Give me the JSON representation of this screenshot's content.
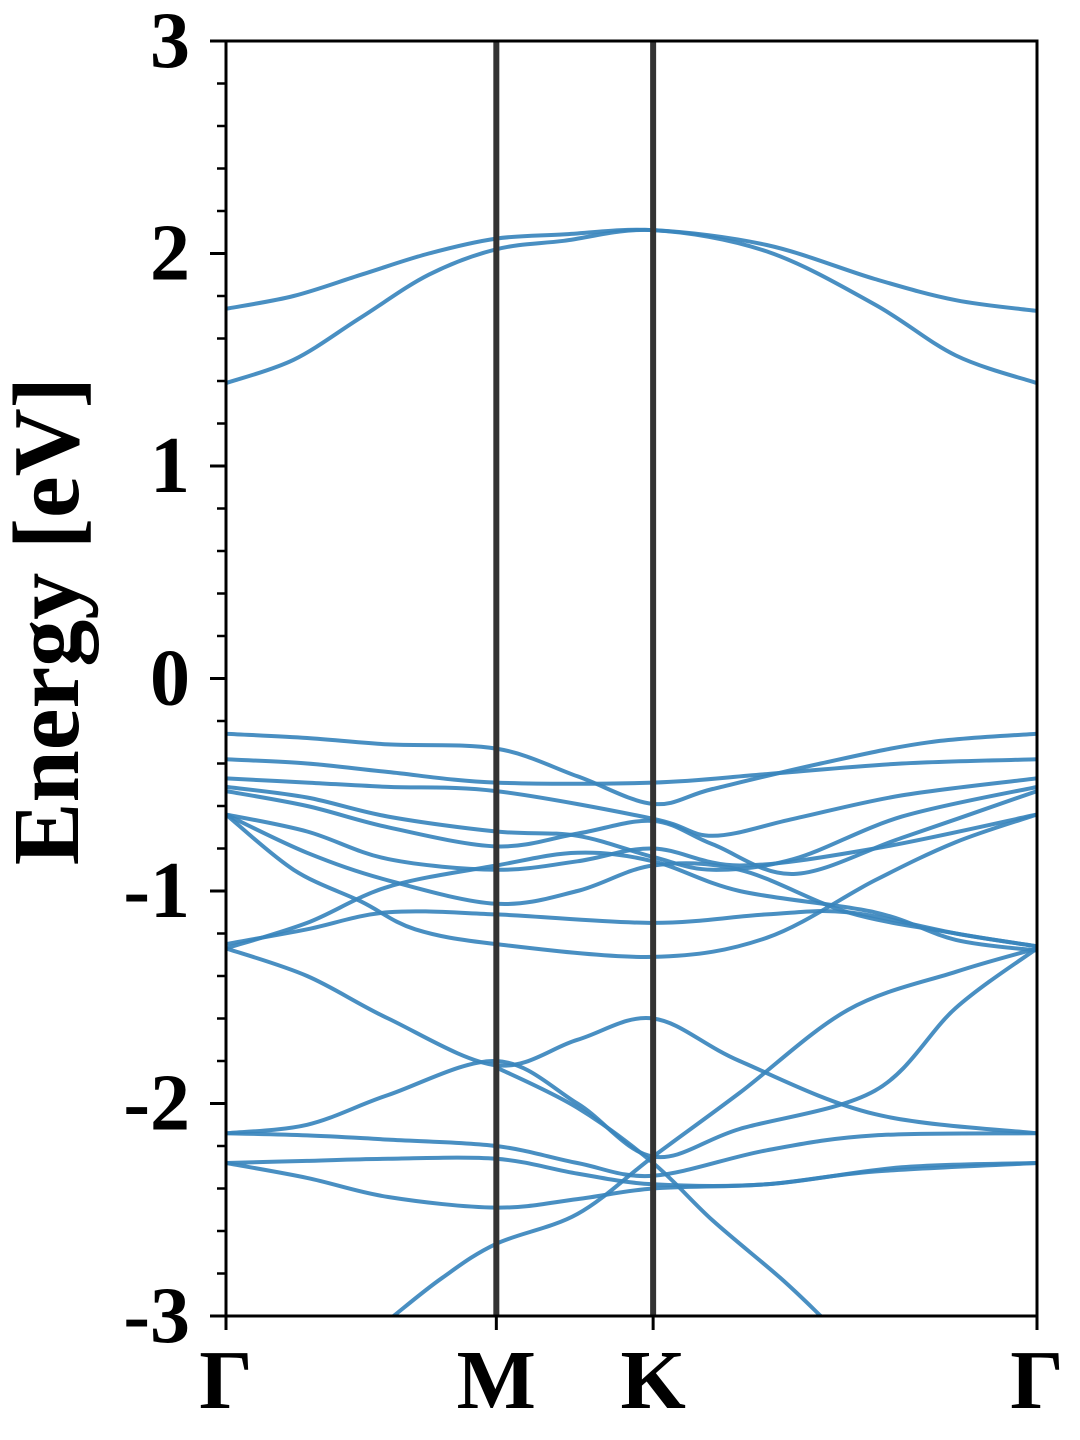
{
  "chart_data": {
    "type": "line",
    "title": "",
    "xlabel": "",
    "ylabel": "Energy [eV]",
    "ylim": [
      -3,
      3
    ],
    "xlim": [
      0,
      3
    ],
    "y_ticks": [
      "-3",
      "-2",
      "-1",
      "0",
      "1",
      "2",
      "3"
    ],
    "y_minor_step": 0.2,
    "high_symmetry_points": [
      {
        "label": "Γ",
        "x": 0
      },
      {
        "label": "M",
        "x": 1
      },
      {
        "label": "K",
        "x": 1.58
      },
      {
        "label": "Γ",
        "x": 3
      }
    ],
    "grid": false,
    "legend": "none",
    "colors": {
      "band": "#3a85bd",
      "vline": "#333333",
      "frame": "#000000"
    },
    "series": [
      {
        "values": [
          [
            0,
            1.74
          ],
          [
            0.25,
            1.8
          ],
          [
            0.5,
            1.9
          ],
          [
            0.75,
            2.0
          ],
          [
            1,
            2.07
          ],
          [
            1.25,
            2.09
          ],
          [
            1.58,
            2.11
          ],
          [
            2,
            2.04
          ],
          [
            2.4,
            1.88
          ],
          [
            2.7,
            1.78
          ],
          [
            3,
            1.73
          ]
        ]
      },
      {
        "values": [
          [
            0,
            1.39
          ],
          [
            0.25,
            1.5
          ],
          [
            0.5,
            1.7
          ],
          [
            0.75,
            1.9
          ],
          [
            1,
            2.02
          ],
          [
            1.25,
            2.06
          ],
          [
            1.58,
            2.11
          ],
          [
            2,
            2.01
          ],
          [
            2.4,
            1.76
          ],
          [
            2.7,
            1.52
          ],
          [
            3,
            1.39
          ]
        ]
      },
      {
        "values": [
          [
            0,
            -0.26
          ],
          [
            0.3,
            -0.28
          ],
          [
            0.6,
            -0.31
          ],
          [
            1,
            -0.33
          ],
          [
            1.3,
            -0.46
          ],
          [
            1.58,
            -0.59
          ],
          [
            1.8,
            -0.52
          ],
          [
            2.2,
            -0.4
          ],
          [
            2.6,
            -0.3
          ],
          [
            3,
            -0.26
          ]
        ]
      },
      {
        "values": [
          [
            0,
            -0.38
          ],
          [
            0.3,
            -0.4
          ],
          [
            0.6,
            -0.44
          ],
          [
            1,
            -0.49
          ],
          [
            1.58,
            -0.49
          ],
          [
            2,
            -0.45
          ],
          [
            2.5,
            -0.4
          ],
          [
            3,
            -0.38
          ]
        ]
      },
      {
        "values": [
          [
            0,
            -0.47
          ],
          [
            0.3,
            -0.49
          ],
          [
            0.6,
            -0.51
          ],
          [
            1,
            -0.53
          ],
          [
            1.58,
            -0.66
          ],
          [
            1.8,
            -0.74
          ],
          [
            2.1,
            -0.66
          ],
          [
            2.5,
            -0.55
          ],
          [
            3,
            -0.47
          ]
        ]
      },
      {
        "values": [
          [
            0,
            -0.51
          ],
          [
            0.3,
            -0.56
          ],
          [
            0.6,
            -0.65
          ],
          [
            1,
            -0.72
          ],
          [
            1.3,
            -0.74
          ],
          [
            1.58,
            -0.84
          ],
          [
            1.8,
            -0.9
          ],
          [
            2.1,
            -0.85
          ],
          [
            2.5,
            -0.65
          ],
          [
            3,
            -0.51
          ]
        ]
      },
      {
        "values": [
          [
            0,
            -0.53
          ],
          [
            0.3,
            -0.6
          ],
          [
            0.6,
            -0.7
          ],
          [
            1,
            -0.79
          ],
          [
            1.3,
            -0.73
          ],
          [
            1.58,
            -0.67
          ],
          [
            1.8,
            -0.78
          ],
          [
            2.1,
            -0.92
          ],
          [
            2.5,
            -0.75
          ],
          [
            3,
            -0.53
          ]
        ]
      },
      {
        "values": [
          [
            0,
            -0.64
          ],
          [
            0.3,
            -0.72
          ],
          [
            0.6,
            -0.85
          ],
          [
            1,
            -0.9
          ],
          [
            1.3,
            -0.86
          ],
          [
            1.58,
            -0.8
          ],
          [
            1.9,
            -0.88
          ],
          [
            2.4,
            -0.8
          ],
          [
            3,
            -0.64
          ]
        ]
      },
      {
        "values": [
          [
            0,
            -0.64
          ],
          [
            0.3,
            -0.82
          ],
          [
            0.6,
            -0.95
          ],
          [
            1,
            -1.06
          ],
          [
            1.3,
            -1.0
          ],
          [
            1.58,
            -0.88
          ],
          [
            1.9,
            -0.9
          ],
          [
            2.3,
            -1.1
          ],
          [
            2.7,
            -1.2
          ],
          [
            3,
            -1.26
          ]
        ]
      },
      {
        "values": [
          [
            0,
            -1.25
          ],
          [
            0.3,
            -1.18
          ],
          [
            0.6,
            -1.1
          ],
          [
            1,
            -1.11
          ],
          [
            1.58,
            -1.15
          ],
          [
            2,
            -1.11
          ],
          [
            2.3,
            -1.1
          ],
          [
            2.7,
            -1.2
          ],
          [
            3,
            -1.26
          ]
        ]
      },
      {
        "values": [
          [
            0,
            -1.27
          ],
          [
            0.3,
            -1.15
          ],
          [
            0.6,
            -0.98
          ],
          [
            1,
            -0.88
          ],
          [
            1.3,
            -0.82
          ],
          [
            1.58,
            -0.86
          ],
          [
            1.9,
            -1.0
          ],
          [
            2.4,
            -1.1
          ],
          [
            2.7,
            -1.23
          ],
          [
            3,
            -1.28
          ]
        ]
      },
      {
        "values": [
          [
            0,
            -0.64
          ],
          [
            0.25,
            -0.9
          ],
          [
            0.5,
            -1.05
          ],
          [
            0.7,
            -1.18
          ],
          [
            1,
            -1.25
          ],
          [
            1.58,
            -1.31
          ],
          [
            2,
            -1.22
          ],
          [
            2.4,
            -0.95
          ],
          [
            2.7,
            -0.77
          ],
          [
            3,
            -0.64
          ]
        ]
      },
      {
        "values": [
          [
            0,
            -1.27
          ],
          [
            0.3,
            -1.4
          ],
          [
            0.6,
            -1.6
          ],
          [
            1,
            -1.82
          ],
          [
            1.3,
            -1.7
          ],
          [
            1.58,
            -1.6
          ],
          [
            1.9,
            -1.8
          ],
          [
            2.4,
            -2.05
          ],
          [
            3,
            -2.14
          ]
        ]
      },
      {
        "values": [
          [
            0,
            -2.14
          ],
          [
            0.3,
            -2.1
          ],
          [
            0.6,
            -1.96
          ],
          [
            1,
            -1.8
          ],
          [
            1.3,
            -2.0
          ],
          [
            1.58,
            -2.25
          ],
          [
            1.9,
            -2.12
          ],
          [
            2.4,
            -1.94
          ],
          [
            2.7,
            -1.55
          ],
          [
            3,
            -1.27
          ]
        ]
      },
      {
        "values": [
          [
            0,
            -2.14
          ],
          [
            0.3,
            -2.15
          ],
          [
            0.6,
            -2.17
          ],
          [
            1,
            -2.2
          ],
          [
            1.3,
            -2.28
          ],
          [
            1.58,
            -2.34
          ],
          [
            2,
            -2.22
          ],
          [
            2.4,
            -2.15
          ],
          [
            3,
            -2.14
          ]
        ]
      },
      {
        "values": [
          [
            0,
            -2.28
          ],
          [
            0.3,
            -2.27
          ],
          [
            0.6,
            -2.26
          ],
          [
            1,
            -2.26
          ],
          [
            1.3,
            -2.33
          ],
          [
            1.58,
            -2.38
          ],
          [
            2,
            -2.38
          ],
          [
            2.5,
            -2.3
          ],
          [
            3,
            -2.28
          ]
        ]
      },
      {
        "values": [
          [
            0,
            -2.28
          ],
          [
            0.3,
            -2.35
          ],
          [
            0.6,
            -2.44
          ],
          [
            1,
            -2.49
          ],
          [
            1.3,
            -2.45
          ],
          [
            1.58,
            -2.4
          ],
          [
            2,
            -2.38
          ],
          [
            2.4,
            -2.32
          ],
          [
            3,
            -2.28
          ]
        ]
      },
      {
        "values": [
          [
            0.62,
            -3.0
          ],
          [
            0.8,
            -2.82
          ],
          [
            1,
            -2.66
          ],
          [
            1.3,
            -2.52
          ],
          [
            1.58,
            -2.25
          ],
          [
            1.9,
            -1.95
          ],
          [
            2.3,
            -1.56
          ],
          [
            2.7,
            -1.38
          ],
          [
            3,
            -1.27
          ]
        ]
      },
      {
        "values": [
          [
            1,
            -1.83
          ],
          [
            1.3,
            -2.02
          ],
          [
            1.58,
            -2.28
          ],
          [
            1.8,
            -2.55
          ],
          [
            2.05,
            -2.82
          ],
          [
            2.2,
            -3.0
          ]
        ]
      }
    ]
  }
}
